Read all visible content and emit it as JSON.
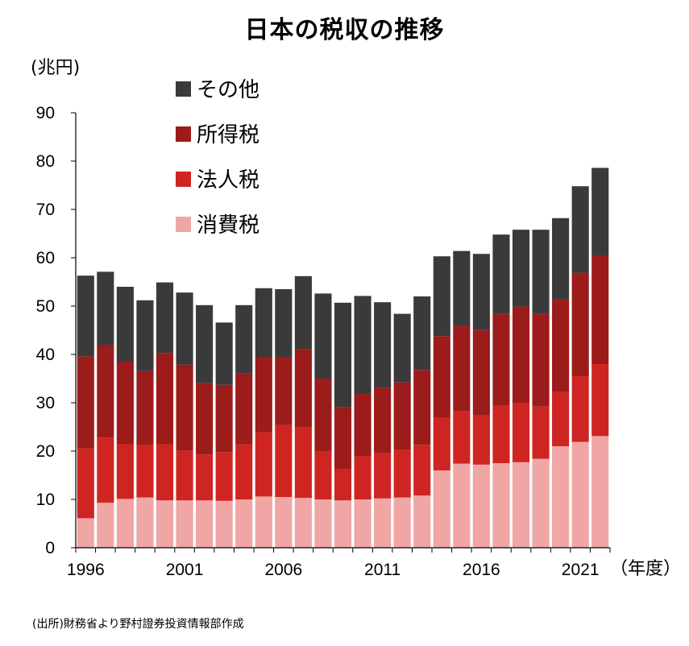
{
  "chart_data": {
    "type": "bar",
    "stacked": true,
    "title": "日本の税収の推移",
    "ylabel": "(兆円)",
    "xlabel": "（年度）",
    "source": "(出所)財務省より野村證券投資情報部作成",
    "ylim": [
      0,
      90
    ],
    "yticks": [
      0,
      10,
      20,
      30,
      40,
      50,
      60,
      70,
      80,
      90
    ],
    "x": [
      1996,
      1997,
      1998,
      1999,
      2000,
      2001,
      2002,
      2003,
      2004,
      2005,
      2006,
      2007,
      2008,
      2009,
      2010,
      2011,
      2012,
      2013,
      2014,
      2015,
      2016,
      2017,
      2018,
      2019,
      2020,
      2021,
      2022
    ],
    "xtick_labels": [
      1996,
      2001,
      2006,
      2011,
      2016,
      2021
    ],
    "legend_order": [
      "その他",
      "所得税",
      "法人税",
      "消費税"
    ],
    "legend_position": "top-left",
    "series": [
      {
        "name": "消費税",
        "color": "#f0a6a4",
        "values": [
          6.1,
          9.3,
          10.1,
          10.4,
          9.8,
          9.8,
          9.8,
          9.7,
          10.0,
          10.6,
          10.5,
          10.3,
          10.0,
          9.8,
          10.0,
          10.2,
          10.4,
          10.8,
          16.0,
          17.4,
          17.2,
          17.5,
          17.7,
          18.4,
          21.0,
          21.9,
          23.1
        ]
      },
      {
        "name": "法人税",
        "color": "#cf2522",
        "values": [
          14.5,
          13.5,
          11.4,
          10.8,
          11.7,
          10.3,
          9.5,
          10.1,
          11.4,
          13.3,
          14.9,
          14.7,
          10.0,
          6.4,
          9.0,
          9.4,
          9.8,
          10.5,
          11.0,
          10.8,
          10.3,
          12.0,
          12.3,
          10.8,
          11.2,
          13.6,
          14.9
        ]
      },
      {
        "name": "所得税",
        "color": "#9b1c1b",
        "values": [
          19.0,
          19.2,
          17.0,
          15.4,
          18.8,
          17.8,
          14.8,
          13.9,
          14.7,
          15.6,
          14.1,
          16.1,
          15.0,
          12.9,
          13.0,
          13.5,
          14.0,
          15.5,
          16.8,
          17.8,
          17.6,
          18.9,
          19.9,
          19.2,
          19.2,
          21.4,
          22.5
        ]
      },
      {
        "name": "その他",
        "color": "#3a3a3a",
        "values": [
          16.7,
          15.1,
          15.5,
          14.6,
          14.6,
          14.9,
          16.1,
          12.9,
          14.1,
          14.2,
          14.0,
          15.1,
          17.6,
          21.6,
          20.1,
          17.7,
          14.2,
          15.2,
          16.5,
          15.4,
          15.7,
          16.4,
          15.9,
          17.4,
          16.8,
          17.9,
          18.1
        ]
      }
    ]
  }
}
